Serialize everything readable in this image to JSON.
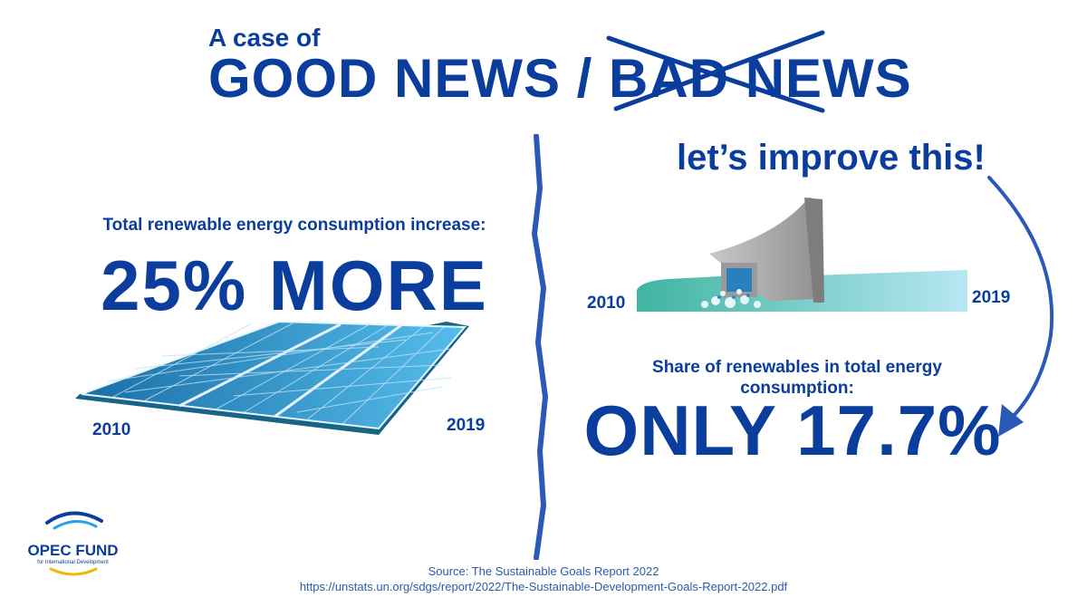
{
  "header": {
    "subtitle": "A case of",
    "title_good": "GOOD NEWS / ",
    "title_bad": "BAD NEWS"
  },
  "left": {
    "label": "Total renewable energy consumption increase:",
    "headline": "25% MORE",
    "year_start": "2010",
    "year_end": "2019"
  },
  "right": {
    "callout": "let’s improve this!",
    "year_start": "2010",
    "year_end": "2019",
    "label": "Share of renewables in total energy consumption:",
    "headline": "ONLY 17.7%"
  },
  "logo": {
    "name": "OPEC FUND",
    "tagline": "for International Development"
  },
  "source": {
    "line1": "Source: The Sustainable Goals Report 2022",
    "line2": "https://unstats.un.org/sdgs/report/2022/The-Sustainable-Development-Goals-Report-2022.pdf"
  },
  "colors": {
    "navy": "#0a3d9c",
    "solar_dark": "#1a6fa8",
    "solar_light": "#49b3e6",
    "teal": "#3fb5a0"
  }
}
